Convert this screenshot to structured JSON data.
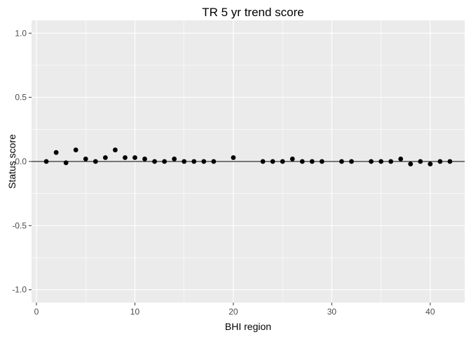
{
  "chart_data": {
    "type": "scatter",
    "title": "TR 5 yr trend score",
    "xlabel": "BHI region",
    "ylabel": "Status score",
    "xlim": [
      -0.5,
      43.5
    ],
    "ylim": [
      -1.1,
      1.1
    ],
    "x_ticks": [
      0,
      10,
      20,
      30,
      40
    ],
    "x_tick_labels": [
      "0",
      "10",
      "20",
      "30",
      "40"
    ],
    "y_ticks": [
      -1.0,
      -0.5,
      0.0,
      0.5,
      1.0
    ],
    "y_tick_labels": [
      "-1.0",
      "-0.5",
      "0.0",
      "0.5",
      "1.0"
    ],
    "grid": true,
    "hline": 0,
    "colors": {
      "panel": "#ebebeb",
      "grid_major": "#ffffff",
      "point": "#000000",
      "hline": "#000000"
    },
    "points": [
      {
        "x": 1,
        "y": 0.0
      },
      {
        "x": 2,
        "y": 0.07
      },
      {
        "x": 3,
        "y": -0.01
      },
      {
        "x": 4,
        "y": 0.09
      },
      {
        "x": 5,
        "y": 0.02
      },
      {
        "x": 6,
        "y": 0.0
      },
      {
        "x": 7,
        "y": 0.03
      },
      {
        "x": 8,
        "y": 0.09
      },
      {
        "x": 9,
        "y": 0.03
      },
      {
        "x": 10,
        "y": 0.03
      },
      {
        "x": 11,
        "y": 0.02
      },
      {
        "x": 12,
        "y": 0.0
      },
      {
        "x": 13,
        "y": 0.0
      },
      {
        "x": 14,
        "y": 0.02
      },
      {
        "x": 15,
        "y": 0.0
      },
      {
        "x": 16,
        "y": 0.0
      },
      {
        "x": 17,
        "y": 0.0
      },
      {
        "x": 18,
        "y": 0.0
      },
      {
        "x": 20,
        "y": 0.03
      },
      {
        "x": 23,
        "y": 0.0
      },
      {
        "x": 24,
        "y": 0.0
      },
      {
        "x": 25,
        "y": 0.0
      },
      {
        "x": 26,
        "y": 0.02
      },
      {
        "x": 27,
        "y": 0.0
      },
      {
        "x": 28,
        "y": 0.0
      },
      {
        "x": 29,
        "y": 0.0
      },
      {
        "x": 31,
        "y": 0.0
      },
      {
        "x": 32,
        "y": 0.0
      },
      {
        "x": 34,
        "y": 0.0
      },
      {
        "x": 35,
        "y": 0.0
      },
      {
        "x": 36,
        "y": 0.0
      },
      {
        "x": 37,
        "y": 0.02
      },
      {
        "x": 38,
        "y": -0.02
      },
      {
        "x": 39,
        "y": 0.0
      },
      {
        "x": 40,
        "y": -0.02
      },
      {
        "x": 41,
        "y": 0.0
      },
      {
        "x": 42,
        "y": 0.0
      }
    ]
  }
}
